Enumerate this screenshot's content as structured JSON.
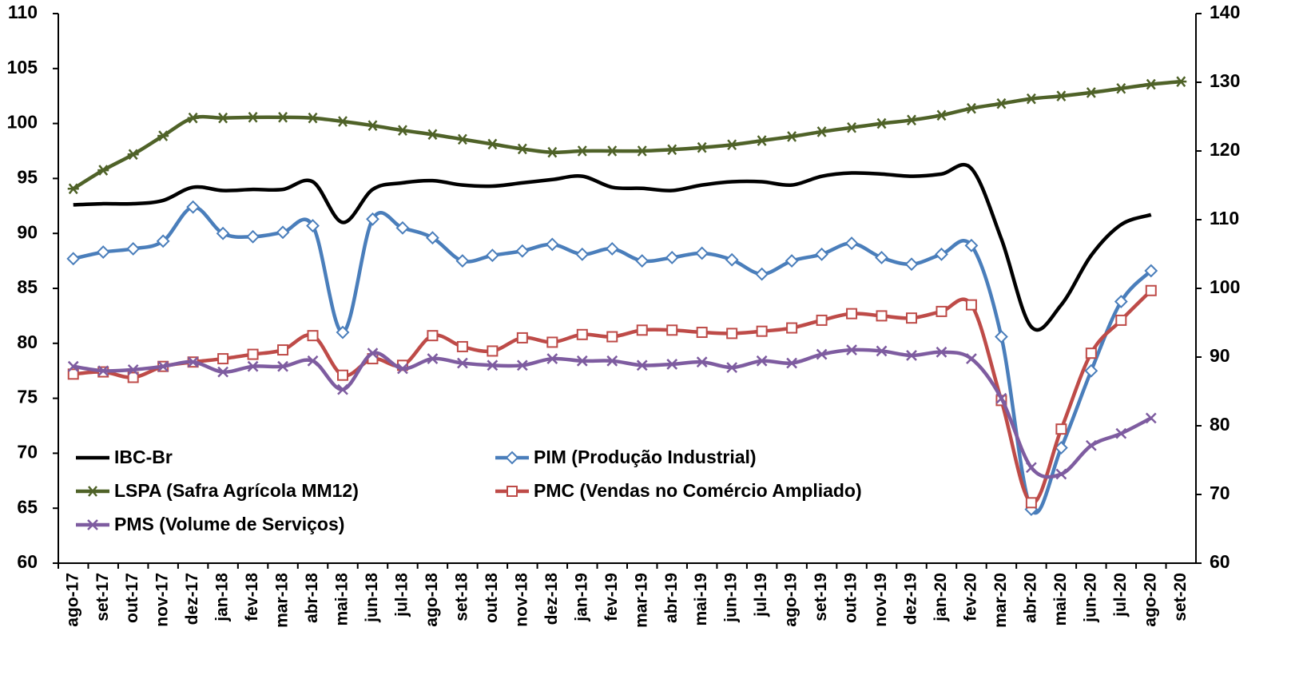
{
  "chart_data": {
    "type": "line",
    "smooth": true,
    "categories": [
      "ago-17",
      "set-17",
      "out-17",
      "nov-17",
      "dez-17",
      "jan-18",
      "fev-18",
      "mar-18",
      "abr-18",
      "mai-18",
      "jun-18",
      "jul-18",
      "ago-18",
      "set-18",
      "out-18",
      "nov-18",
      "dez-18",
      "jan-19",
      "fev-19",
      "mar-19",
      "abr-19",
      "mai-19",
      "jun-19",
      "jul-19",
      "ago-19",
      "set-19",
      "out-19",
      "nov-19",
      "dez-19",
      "jan-20",
      "fev-20",
      "mar-20",
      "abr-20",
      "mai-20",
      "jun-20",
      "jul-20",
      "ago-20",
      "set-20"
    ],
    "ylim": [
      60,
      110
    ],
    "yticks": [
      60,
      65,
      70,
      75,
      80,
      85,
      90,
      95,
      100,
      105,
      110
    ],
    "y2lim": [
      60,
      140
    ],
    "y2ticks": [
      60,
      70,
      80,
      90,
      100,
      110,
      120,
      130,
      140
    ],
    "series": [
      {
        "name": "IBC-Br",
        "color": "#000000",
        "marker": "none",
        "values": [
          92.6,
          92.7,
          92.7,
          93.0,
          94.2,
          93.9,
          94.0,
          94.0,
          94.7,
          91.0,
          94.0,
          94.6,
          94.8,
          94.4,
          94.3,
          94.6,
          94.9,
          95.2,
          94.2,
          94.1,
          93.9,
          94.4,
          94.7,
          94.7,
          94.4,
          95.2,
          95.5,
          95.4,
          95.2,
          95.4,
          95.9,
          89.5,
          81.5,
          83.5,
          88.0,
          90.8,
          91.7,
          null
        ]
      },
      {
        "name": "PIM (Produção Industrial)",
        "color": "#4a7ebb",
        "marker": "diamond",
        "values": [
          87.7,
          88.3,
          88.6,
          89.3,
          92.4,
          90.0,
          89.7,
          90.1,
          90.7,
          81.0,
          91.3,
          90.5,
          89.6,
          87.5,
          88.0,
          88.4,
          89.0,
          88.1,
          88.6,
          87.5,
          87.8,
          88.2,
          87.6,
          86.3,
          87.5,
          88.1,
          89.1,
          87.8,
          87.2,
          88.1,
          88.9,
          80.6,
          64.9,
          70.5,
          77.5,
          83.8,
          86.6,
          null
        ]
      },
      {
        "name": "LSPA (Safra Agrícola MM12)",
        "color": "#4f6228",
        "marker": "asterisk",
        "axis": "y2",
        "values": [
          114.5,
          117.2,
          119.5,
          122.2,
          124.8,
          124.8,
          124.9,
          124.9,
          124.8,
          124.3,
          123.7,
          123.0,
          122.4,
          121.7,
          121.0,
          120.3,
          119.8,
          120.0,
          120.0,
          120.0,
          120.2,
          120.5,
          120.9,
          121.5,
          122.1,
          122.8,
          123.4,
          124.0,
          124.5,
          125.2,
          126.2,
          126.9,
          127.6,
          128.0,
          128.5,
          129.1,
          129.7,
          130.1
        ]
      },
      {
        "name": "PMC (Vendas no Comércio Ampliado)",
        "color": "#be4b48",
        "marker": "square",
        "values": [
          77.2,
          77.4,
          76.9,
          77.9,
          78.3,
          78.6,
          79.0,
          79.4,
          80.7,
          77.1,
          78.6,
          78.0,
          80.7,
          79.7,
          79.3,
          80.5,
          80.1,
          80.8,
          80.6,
          81.2,
          81.2,
          81.0,
          80.9,
          81.1,
          81.4,
          82.1,
          82.7,
          82.5,
          82.3,
          82.9,
          83.5,
          74.8,
          65.5,
          72.2,
          79.1,
          82.1,
          84.8,
          null
        ]
      },
      {
        "name": "PMS (Volume de Serviços)",
        "color": "#7e5ca0",
        "marker": "x",
        "values": [
          77.9,
          77.5,
          77.6,
          77.9,
          78.3,
          77.4,
          77.9,
          77.9,
          78.4,
          75.8,
          79.1,
          77.7,
          78.6,
          78.2,
          78.0,
          78.0,
          78.6,
          78.4,
          78.4,
          78.0,
          78.1,
          78.3,
          77.8,
          78.4,
          78.2,
          79.0,
          79.4,
          79.3,
          78.9,
          79.2,
          78.6,
          75.0,
          68.7,
          68.1,
          70.7,
          71.8,
          73.2,
          null
        ]
      }
    ]
  }
}
